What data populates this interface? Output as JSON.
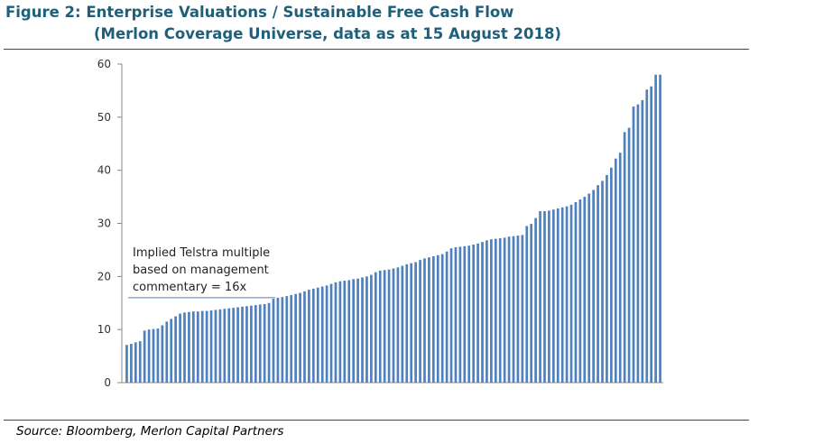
{
  "figure": {
    "title_line1": "Figure 2:  Enterprise Valuations / Sustainable Free Cash Flow",
    "title_line2": "(Merlon Coverage Universe, data as at 15 August 2018)",
    "source": "Source: Bloomberg, Merlon Capital Partners"
  },
  "colors": {
    "bar": "#4f81bd",
    "reference_line": "#4f81bd",
    "title": "#1f5f7a"
  },
  "chart_data": {
    "type": "bar",
    "title": "Enterprise Valuations / Sustainable Free Cash Flow",
    "xlabel": "",
    "ylabel": "",
    "ylim": [
      0,
      60
    ],
    "yticks": [
      0,
      10,
      20,
      30,
      40,
      50,
      60
    ],
    "grid": false,
    "legend": "none",
    "values": [
      7.1,
      7.3,
      7.6,
      7.8,
      9.8,
      10.0,
      10.1,
      10.2,
      10.8,
      11.5,
      12.0,
      12.5,
      13.0,
      13.2,
      13.3,
      13.4,
      13.4,
      13.5,
      13.5,
      13.6,
      13.7,
      13.8,
      13.9,
      14.0,
      14.1,
      14.2,
      14.3,
      14.4,
      14.5,
      14.6,
      14.7,
      14.8,
      15.0,
      15.8,
      16.0,
      16.1,
      16.3,
      16.5,
      16.7,
      16.9,
      17.2,
      17.5,
      17.7,
      17.9,
      18.1,
      18.3,
      18.6,
      18.9,
      19.1,
      19.2,
      19.3,
      19.5,
      19.6,
      19.8,
      20.0,
      20.3,
      20.8,
      21.1,
      21.2,
      21.3,
      21.5,
      21.7,
      22.0,
      22.3,
      22.5,
      22.7,
      23.1,
      23.4,
      23.6,
      23.8,
      24.0,
      24.2,
      24.7,
      25.3,
      25.5,
      25.6,
      25.7,
      25.8,
      26.0,
      26.2,
      26.5,
      26.8,
      27.0,
      27.1,
      27.2,
      27.3,
      27.5,
      27.6,
      27.7,
      27.8,
      29.5,
      29.9,
      31.0,
      32.3,
      32.3,
      32.4,
      32.6,
      32.8,
      33.0,
      33.2,
      33.5,
      34.0,
      34.5,
      35.0,
      35.6,
      36.3,
      37.2,
      38.0,
      39.1,
      40.5,
      42.2,
      43.3,
      47.2,
      48.0,
      52.0,
      52.4,
      53.2,
      55.2,
      55.8,
      58.0,
      58.0
    ],
    "reference_line": {
      "value": 16,
      "annotation": [
        "Implied Telstra multiple",
        "based on management",
        "commentary = 16x"
      ]
    }
  }
}
